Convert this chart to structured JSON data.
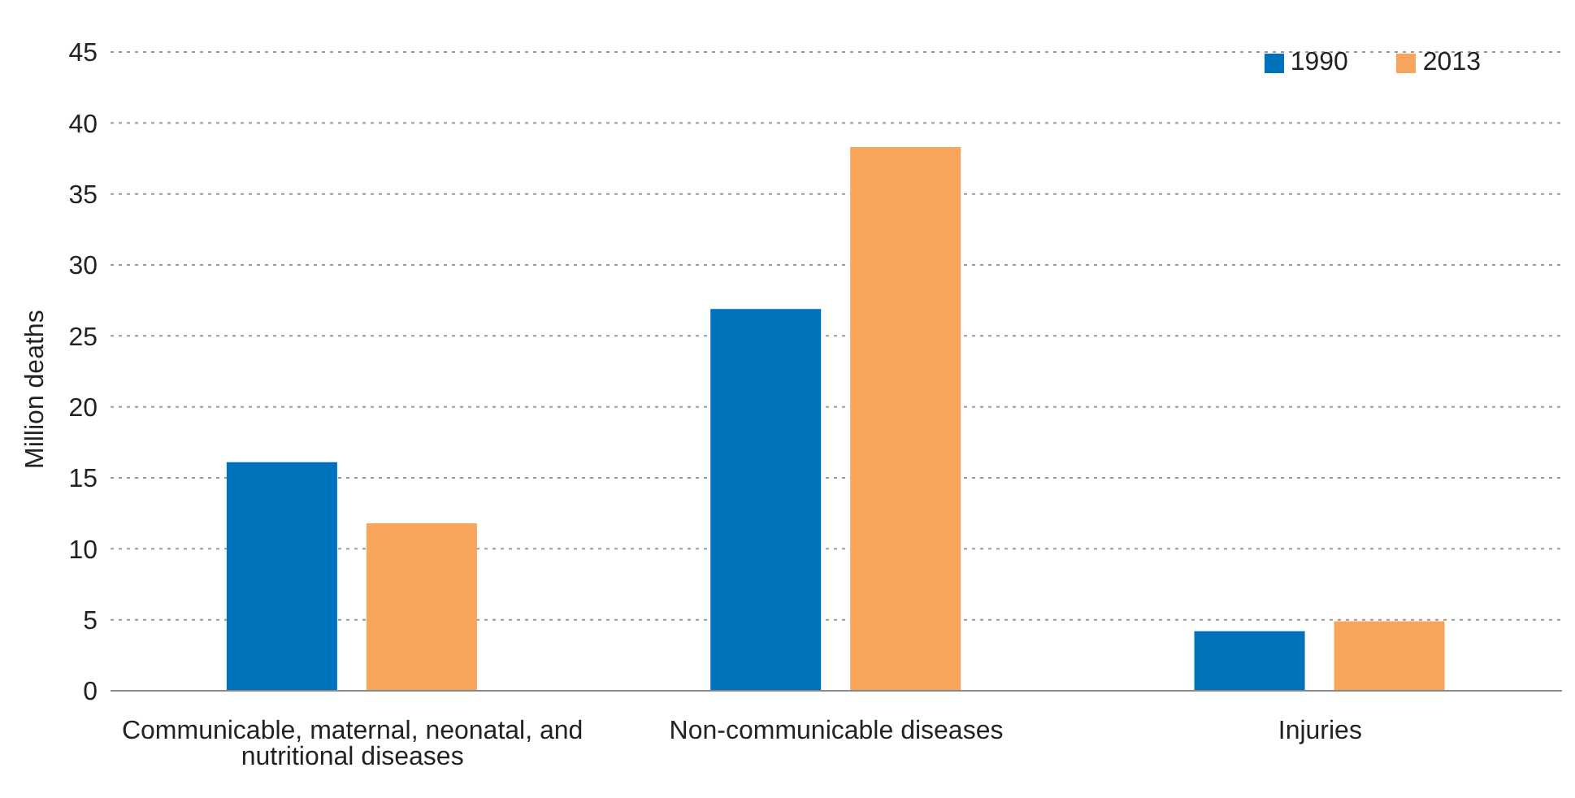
{
  "chart_data": {
    "type": "bar",
    "ylabel": "Million deaths",
    "categories": [
      "Communicable, maternal, neonatal, and nutritional diseases",
      "Non-communicable diseases",
      "Injuries"
    ],
    "series": [
      {
        "name": "1990",
        "color": "#0071bb",
        "values": [
          16.1,
          26.9,
          4.2
        ]
      },
      {
        "name": "2013",
        "color": "#f8a55c",
        "values": [
          11.8,
          38.3,
          4.9
        ]
      }
    ],
    "ylim": [
      0,
      45
    ],
    "yticks": [
      0,
      5,
      10,
      15,
      20,
      25,
      30,
      35,
      40,
      45
    ],
    "grid": "y",
    "legend": "top right"
  }
}
